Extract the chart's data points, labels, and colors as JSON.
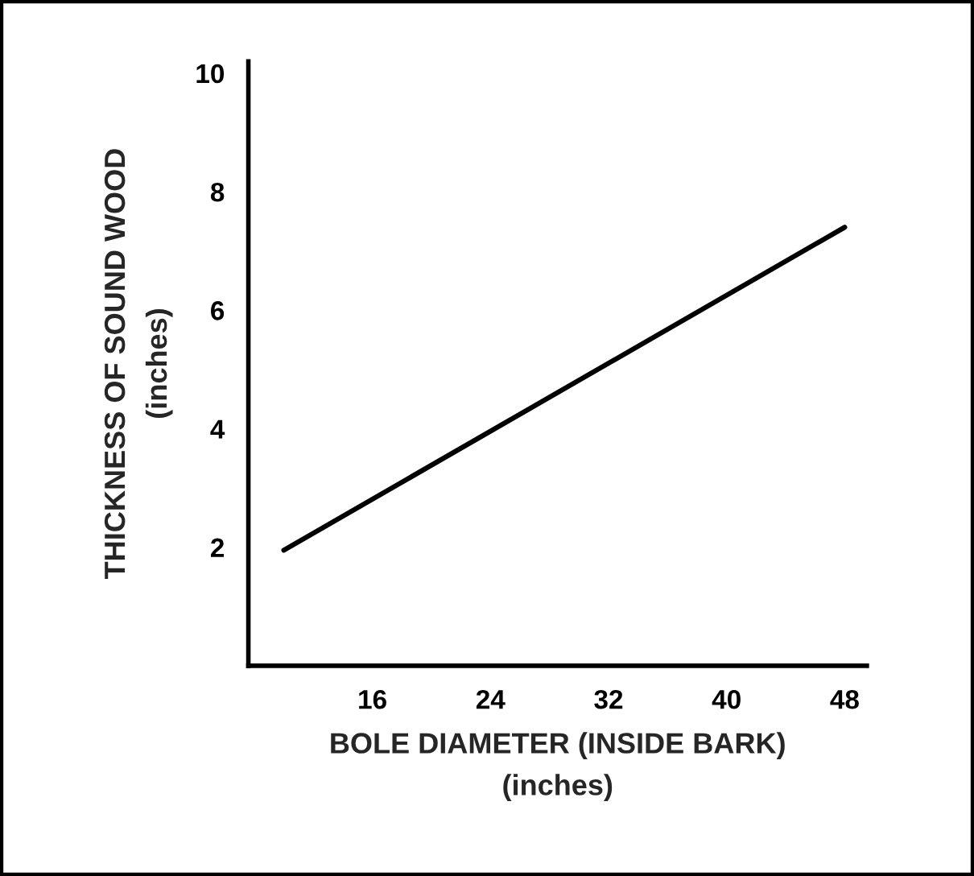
{
  "chart_data": {
    "type": "line",
    "xlabel": "BOLE DIAMETER (INSIDE BARK)\n(inches)",
    "ylabel": "THICKNESS OF SOUND WOOD\n(inches)",
    "x": [
      10,
      48
    ],
    "series": [
      {
        "color": "#000000",
        "values": [
          1.95,
          7.4
        ]
      }
    ],
    "xlim": [
      7.6,
      49.5
    ],
    "ylim": [
      0,
      10.2
    ],
    "xticks": [
      16,
      24,
      32,
      40,
      48
    ],
    "yticks": [
      2,
      4,
      6,
      8,
      10
    ],
    "grid": false,
    "marker": "none",
    "line_style": "solid"
  }
}
